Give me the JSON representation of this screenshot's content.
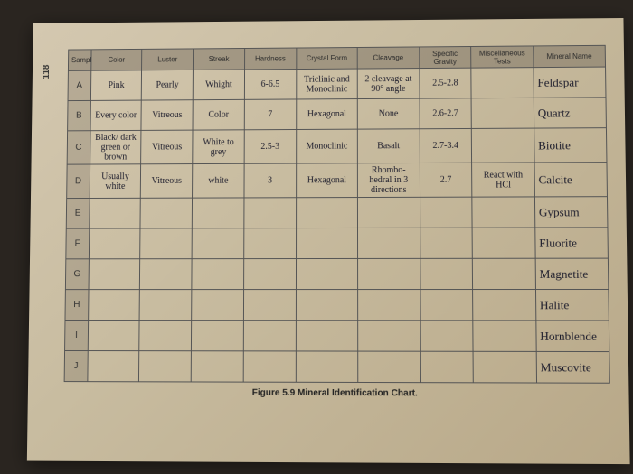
{
  "pageNumber": "118",
  "caption": "Figure 5.9 Mineral Identification Chart.",
  "headers": [
    "Sample",
    "Color",
    "Luster",
    "Streak",
    "Hardness",
    "Crystal Form",
    "Cleavage",
    "Specific Gravity",
    "Miscellaneous Tests",
    "Mineral Name"
  ],
  "rowLabels": [
    "A",
    "B",
    "C",
    "D",
    "E",
    "F",
    "G",
    "H",
    "I",
    "J"
  ],
  "rows": [
    {
      "color": "Pink",
      "luster": "Pearly",
      "streak": "Whight",
      "hardness": "6-6.5",
      "form": "Triclinic and Monoclinic",
      "cleavage": "2 cleavage at 90° angle",
      "sg": "2.5-2.8",
      "misc": "",
      "mineral": "Feldspar"
    },
    {
      "color": "Every color",
      "luster": "Vitreous",
      "streak": "Color",
      "hardness": "7",
      "form": "Hexagonal",
      "cleavage": "None",
      "sg": "2.6-2.7",
      "misc": "",
      "mineral": "Quartz"
    },
    {
      "color": "Black/ dark green or brown",
      "luster": "Vitreous",
      "streak": "White to grey",
      "hardness": "2.5-3",
      "form": "Monoclinic",
      "cleavage": "Basalt",
      "sg": "2.7-3.4",
      "misc": "",
      "mineral": "Biotite"
    },
    {
      "color": "Usually white",
      "luster": "Vitreous",
      "streak": "white",
      "hardness": "3",
      "form": "Hexagonal",
      "cleavage": "Rhombo-hedral in 3 directions",
      "sg": "2.7",
      "misc": "React with HCl",
      "mineral": "Calcite"
    },
    {
      "color": "",
      "luster": "",
      "streak": "",
      "hardness": "",
      "form": "",
      "cleavage": "",
      "sg": "",
      "misc": "",
      "mineral": "Gypsum"
    },
    {
      "color": "",
      "luster": "",
      "streak": "",
      "hardness": "",
      "form": "",
      "cleavage": "",
      "sg": "",
      "misc": "",
      "mineral": "Fluorite"
    },
    {
      "color": "",
      "luster": "",
      "streak": "",
      "hardness": "",
      "form": "",
      "cleavage": "",
      "sg": "",
      "misc": "",
      "mineral": "Magnetite"
    },
    {
      "color": "",
      "luster": "",
      "streak": "",
      "hardness": "",
      "form": "",
      "cleavage": "",
      "sg": "",
      "misc": "",
      "mineral": "Halite"
    },
    {
      "color": "",
      "luster": "",
      "streak": "",
      "hardness": "",
      "form": "",
      "cleavage": "",
      "sg": "",
      "misc": "",
      "mineral": "Hornblende"
    },
    {
      "color": "",
      "luster": "",
      "streak": "",
      "hardness": "",
      "form": "",
      "cleavage": "",
      "sg": "",
      "misc": "",
      "mineral": "Muscovite"
    }
  ]
}
